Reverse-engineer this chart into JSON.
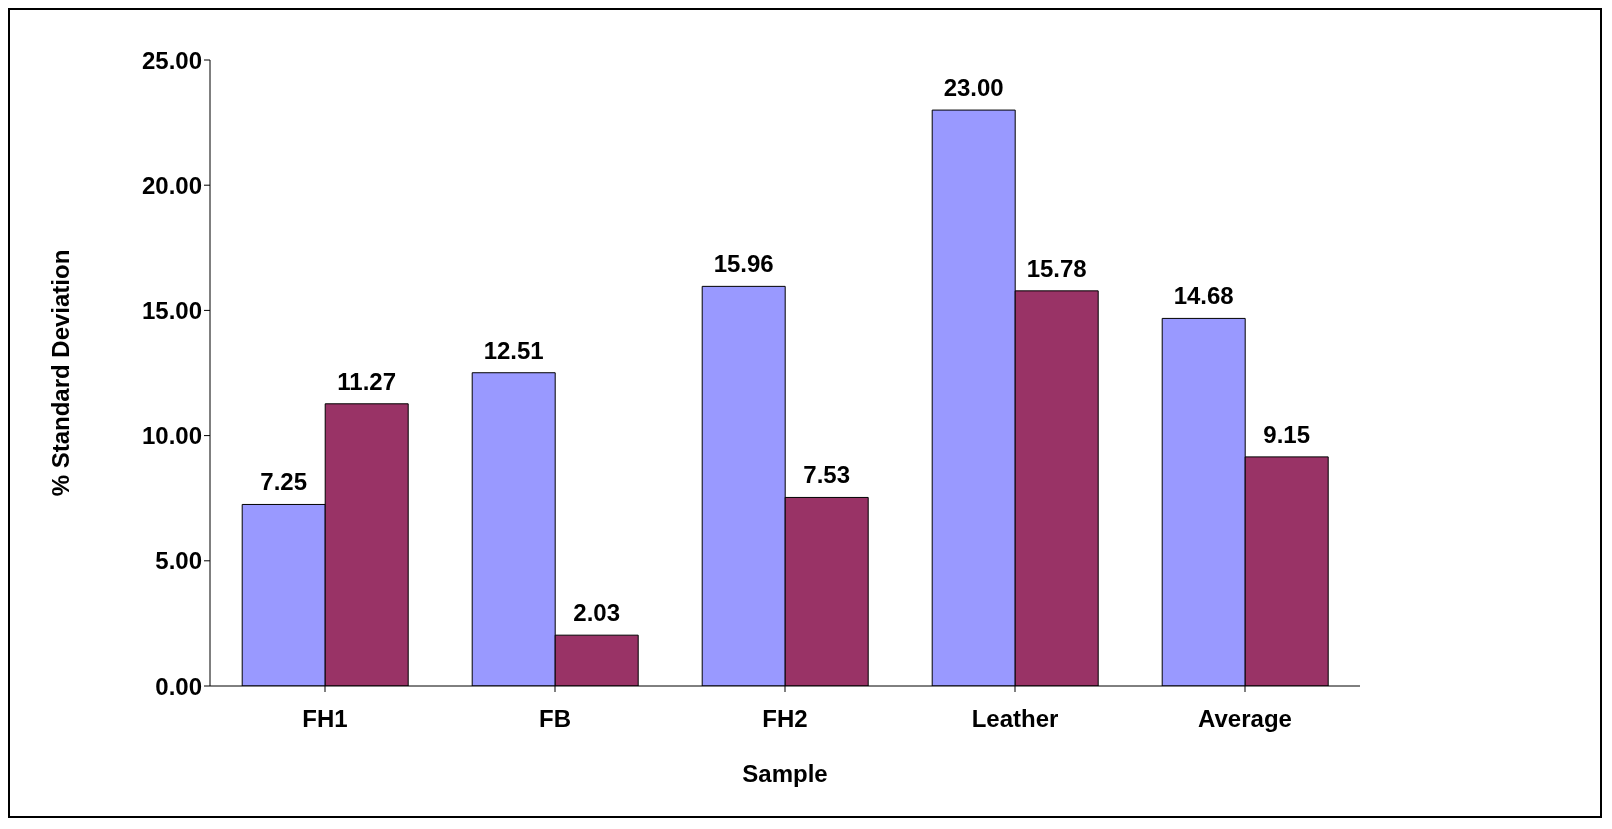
{
  "chart_data": {
    "type": "bar",
    "xlabel": "Sample",
    "ylabel": "% Standard Deviation",
    "categories": [
      "FH1",
      "FB",
      "FH2",
      "Leather",
      "Average"
    ],
    "series": [
      {
        "color": "#9999ff",
        "values": [
          7.25,
          12.51,
          15.96,
          23.0,
          14.68
        ],
        "value_labels": [
          "7.25",
          "12.51",
          "15.96",
          "23.00",
          "14.68"
        ]
      },
      {
        "color": "#993366",
        "values": [
          11.27,
          2.03,
          7.53,
          15.78,
          9.15
        ],
        "value_labels": [
          "11.27",
          "2.03",
          "7.53",
          "15.78",
          "9.15"
        ]
      }
    ],
    "ylim": [
      0,
      25
    ],
    "yticks": [
      {
        "value": 0,
        "label": "0.00"
      },
      {
        "value": 5,
        "label": "5.00"
      },
      {
        "value": 10,
        "label": "10.00"
      },
      {
        "value": 15,
        "label": "15.00"
      },
      {
        "value": 20,
        "label": "20.00"
      },
      {
        "value": 25,
        "label": "25.00"
      }
    ],
    "grid": false,
    "legend": false
  }
}
